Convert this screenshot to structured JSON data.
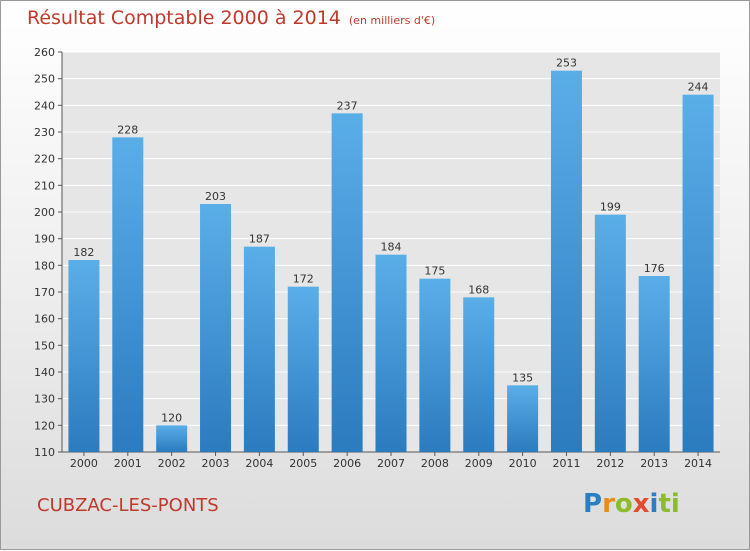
{
  "header": {
    "title": "Résultat Comptable 2000 à 2014",
    "subtitle": "(en milliers d'€)"
  },
  "footer": {
    "place": "CUBZAC-LES-PONTS",
    "logo": [
      "P",
      "r",
      "o",
      "x",
      "i",
      "ti"
    ]
  },
  "colors": {
    "bar_top": "#5aaee8",
    "bar_bottom": "#2b7bbf",
    "title": "#c0392b",
    "grid": "#ffffff"
  },
  "chart_data": {
    "type": "bar",
    "title": "Résultat Comptable 2000 à 2014",
    "subtitle": "(en milliers d'€)",
    "categories": [
      "2000",
      "2001",
      "2002",
      "2003",
      "2004",
      "2005",
      "2006",
      "2007",
      "2008",
      "2009",
      "2010",
      "2011",
      "2012",
      "2013",
      "2014"
    ],
    "values": [
      182,
      228,
      120,
      203,
      187,
      172,
      237,
      184,
      175,
      168,
      135,
      253,
      199,
      176,
      244
    ],
    "ylim": [
      110,
      260
    ],
    "yticks": [
      110,
      120,
      130,
      140,
      150,
      160,
      170,
      180,
      190,
      200,
      210,
      220,
      230,
      240,
      250,
      260
    ],
    "grid": true,
    "data_labels": true
  }
}
